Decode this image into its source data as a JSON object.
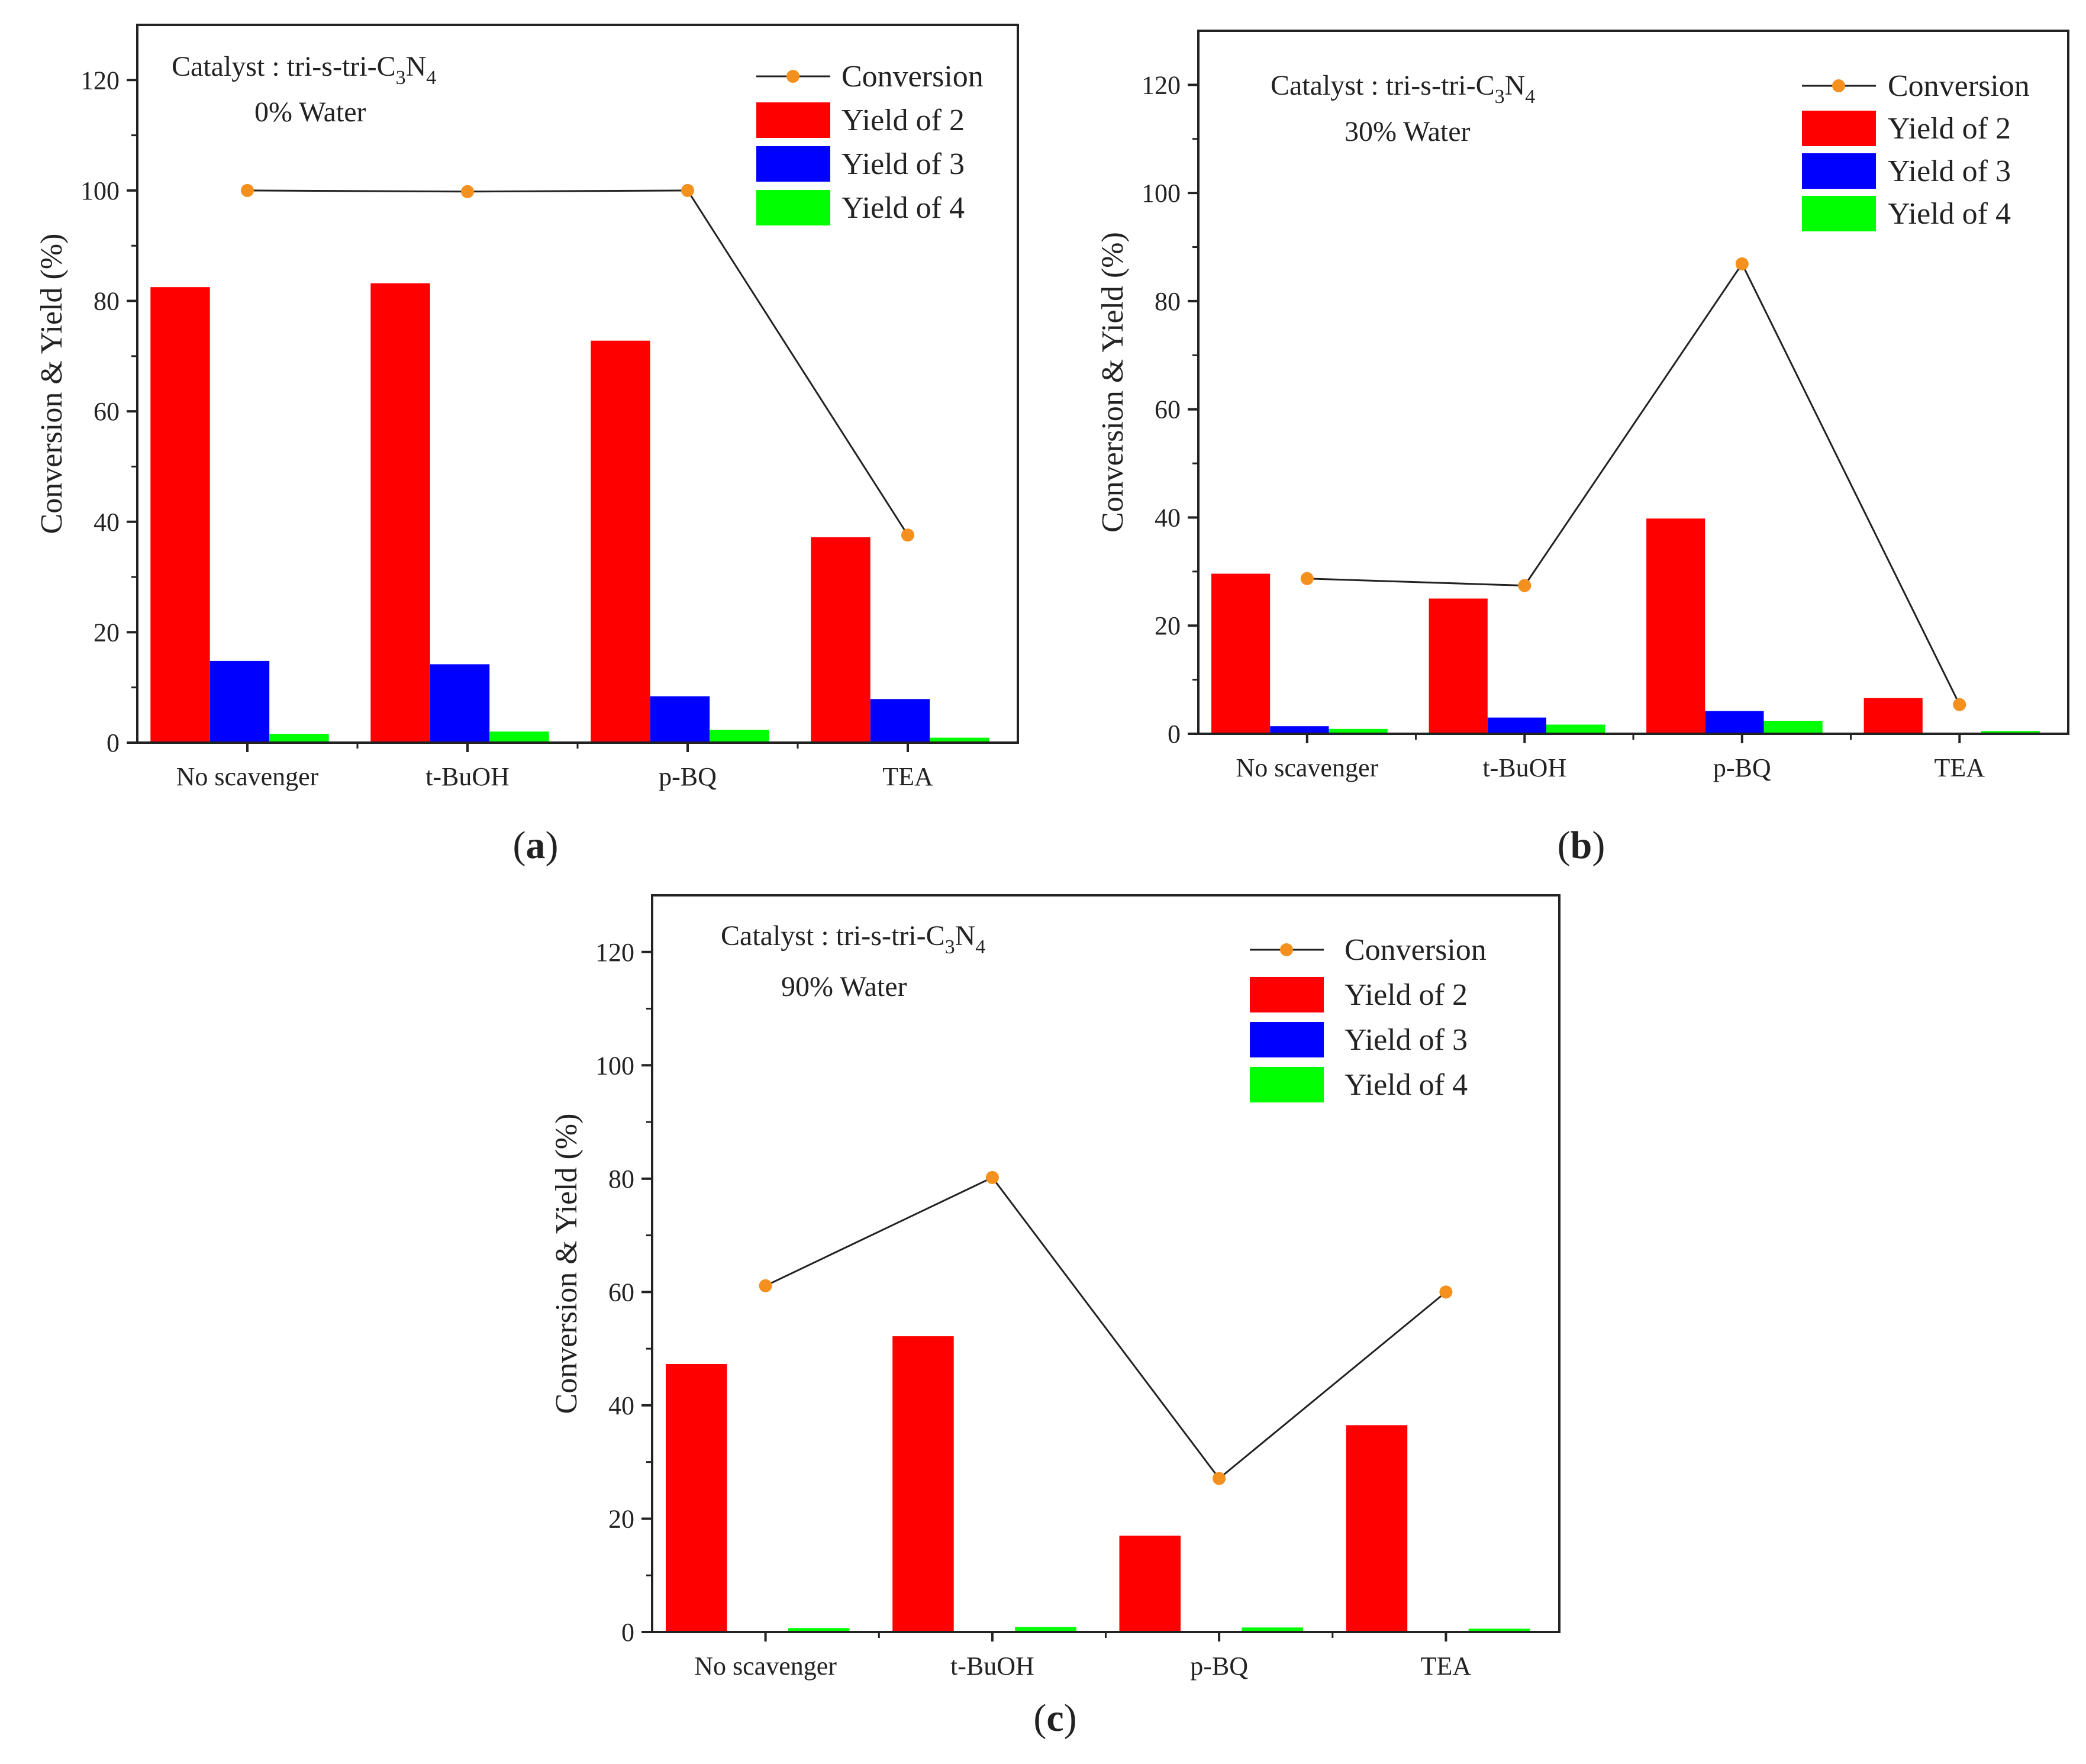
{
  "chart_data": [
    {
      "panel": "a",
      "type": "bar",
      "categories": [
        "No scavenger",
        "t-BuOH",
        "p-BQ",
        "TEA"
      ],
      "series": [
        {
          "name": "Yield of 2",
          "kind": "bar",
          "color": "#ff0000",
          "values": [
            82.5,
            83.2,
            72.8,
            37.2
          ]
        },
        {
          "name": "Yield of 3",
          "kind": "bar",
          "color": "#0000ff",
          "values": [
            14.8,
            14.2,
            8.4,
            7.9
          ]
        },
        {
          "name": "Yield of 4",
          "kind": "bar",
          "color": "#00ff00",
          "values": [
            1.6,
            2.0,
            2.3,
            0.9
          ]
        },
        {
          "name": "Conversion",
          "kind": "line",
          "color": "#f4901e",
          "values": [
            100.0,
            99.8,
            100.0,
            37.6
          ]
        }
      ],
      "ylabel": "Conversion & Yield (%)",
      "ylim": [
        0,
        130
      ],
      "yticks": [
        0,
        20,
        40,
        60,
        80,
        100,
        120
      ],
      "annotation": {
        "catalyst_prefix": "Catalyst : tri-s-tri-C",
        "sub1": "3",
        "mid": "N",
        "sub2": "4",
        "water": "0%  Water"
      },
      "legend_position": "top-right",
      "panel_label": {
        "open": "(",
        "letter": "a",
        "close": ")"
      }
    },
    {
      "panel": "b",
      "type": "bar",
      "categories": [
        "No scavenger",
        "t-BuOH",
        "p-BQ",
        "TEA"
      ],
      "series": [
        {
          "name": "Yield of 2",
          "kind": "bar",
          "color": "#ff0000",
          "values": [
            29.6,
            25.0,
            39.8,
            6.6
          ]
        },
        {
          "name": "Yield of 3",
          "kind": "bar",
          "color": "#0000ff",
          "values": [
            1.4,
            3.0,
            4.2,
            0.0
          ]
        },
        {
          "name": "Yield of 4",
          "kind": "bar",
          "color": "#00ff00",
          "values": [
            0.9,
            1.7,
            2.4,
            0.5
          ]
        },
        {
          "name": "Conversion",
          "kind": "line",
          "color": "#f4901e",
          "values": [
            28.7,
            27.4,
            86.9,
            5.4
          ]
        }
      ],
      "ylabel": "Conversion & Yield (%)",
      "ylim": [
        0,
        130
      ],
      "yticks": [
        0,
        20,
        40,
        60,
        80,
        100,
        120
      ],
      "annotation": {
        "catalyst_prefix": "Catalyst : tri-s-tri-C",
        "sub1": "3",
        "mid": "N",
        "sub2": "4",
        "water": "30%  Water"
      },
      "legend_position": "top-right",
      "panel_label": {
        "open": "(",
        "letter": "b",
        "close": ")"
      }
    },
    {
      "panel": "c",
      "type": "bar",
      "categories": [
        "No scavenger",
        "t-BuOH",
        "p-BQ",
        "TEA"
      ],
      "series": [
        {
          "name": "Yield of 2",
          "kind": "bar",
          "color": "#ff0000",
          "values": [
            47.3,
            52.2,
            17.0,
            36.5
          ]
        },
        {
          "name": "Yield of 3",
          "kind": "bar",
          "color": "#0000ff",
          "values": [
            0.0,
            0.0,
            0.0,
            0.0
          ]
        },
        {
          "name": "Yield of 4",
          "kind": "bar",
          "color": "#00ff00",
          "values": [
            0.7,
            0.9,
            0.8,
            0.6
          ]
        },
        {
          "name": "Conversion",
          "kind": "line",
          "color": "#f4901e",
          "values": [
            61.1,
            80.2,
            27.1,
            60.0
          ]
        }
      ],
      "ylabel": "Conversion & Yield (%)",
      "ylim": [
        0,
        130
      ],
      "yticks": [
        0,
        20,
        40,
        60,
        80,
        100,
        120
      ],
      "annotation": {
        "catalyst_prefix": "Catalyst : tri-s-tri-C",
        "sub1": "3",
        "mid": "N",
        "sub2": "4",
        "water": "90%  Water"
      },
      "legend_position": "top-right",
      "panel_label": {
        "open": "(",
        "letter": "c",
        "close": ")"
      }
    }
  ]
}
